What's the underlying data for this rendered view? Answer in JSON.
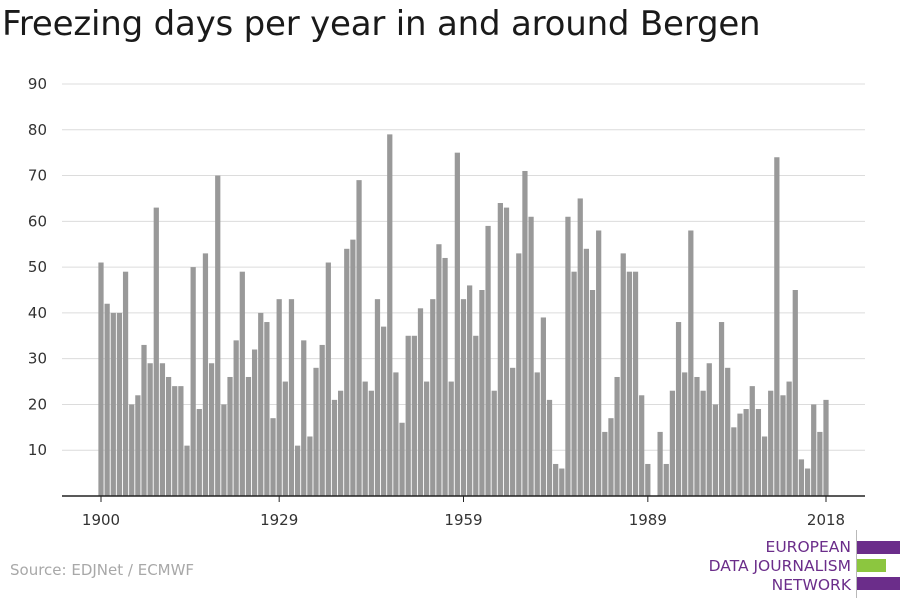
{
  "title": "Freezing days per year in and around Bergen",
  "source": "Source: EDJNet / ECMWF",
  "logo": {
    "lines": [
      "EUROPEAN",
      "DATA JOURNALISM",
      "NETWORK"
    ],
    "colors": {
      "purple": "#6b2d8a",
      "green": "#8cc63f"
    }
  },
  "chart_data": {
    "type": "bar",
    "title": "Freezing days per year in and around Bergen",
    "xlabel": "",
    "ylabel": "",
    "x_ticks": [
      "1900",
      "1929",
      "1959",
      "1989",
      "2018"
    ],
    "y_ticks": [
      10,
      20,
      30,
      40,
      50,
      60,
      70,
      80,
      90
    ],
    "ylim": [
      0,
      90
    ],
    "xlim": [
      1900,
      2018
    ],
    "grid": true,
    "bar_color": "#999999",
    "categories": [
      1900,
      1901,
      1902,
      1903,
      1904,
      1905,
      1906,
      1907,
      1908,
      1909,
      1910,
      1911,
      1912,
      1913,
      1914,
      1915,
      1916,
      1917,
      1918,
      1919,
      1920,
      1921,
      1922,
      1923,
      1924,
      1925,
      1926,
      1927,
      1928,
      1929,
      1930,
      1931,
      1932,
      1933,
      1934,
      1935,
      1936,
      1937,
      1938,
      1939,
      1940,
      1941,
      1942,
      1943,
      1944,
      1945,
      1946,
      1947,
      1948,
      1949,
      1950,
      1951,
      1952,
      1953,
      1954,
      1955,
      1956,
      1957,
      1958,
      1959,
      1960,
      1961,
      1962,
      1963,
      1964,
      1965,
      1966,
      1967,
      1968,
      1969,
      1970,
      1971,
      1972,
      1973,
      1974,
      1975,
      1976,
      1977,
      1978,
      1979,
      1980,
      1981,
      1982,
      1983,
      1984,
      1985,
      1986,
      1987,
      1988,
      1989,
      1990,
      1991,
      1992,
      1993,
      1994,
      1995,
      1996,
      1997,
      1998,
      1999,
      2000,
      2001,
      2002,
      2003,
      2004,
      2005,
      2006,
      2007,
      2008,
      2009,
      2010,
      2011,
      2012,
      2013,
      2014,
      2015,
      2016,
      2017,
      2018
    ],
    "values": [
      51,
      42,
      40,
      40,
      49,
      20,
      22,
      33,
      29,
      63,
      29,
      26,
      24,
      24,
      11,
      50,
      19,
      53,
      29,
      70,
      20,
      26,
      34,
      49,
      26,
      32,
      40,
      38,
      17,
      43,
      25,
      43,
      11,
      34,
      13,
      28,
      33,
      51,
      21,
      23,
      54,
      56,
      69,
      25,
      23,
      43,
      37,
      79,
      27,
      16,
      35,
      35,
      41,
      25,
      43,
      55,
      52,
      25,
      75,
      43,
      46,
      35,
      45,
      59,
      23,
      64,
      63,
      28,
      53,
      71,
      61,
      27,
      39,
      21,
      7,
      6,
      61,
      49,
      65,
      54,
      45,
      58,
      14,
      17,
      26,
      53,
      49,
      49,
      22,
      7,
      0,
      14,
      7,
      23,
      38,
      27,
      58,
      26,
      23,
      29,
      20,
      38,
      28,
      15,
      18,
      19,
      24,
      19,
      13,
      23,
      74,
      22,
      25,
      45,
      8,
      6,
      20,
      14,
      21
    ]
  }
}
